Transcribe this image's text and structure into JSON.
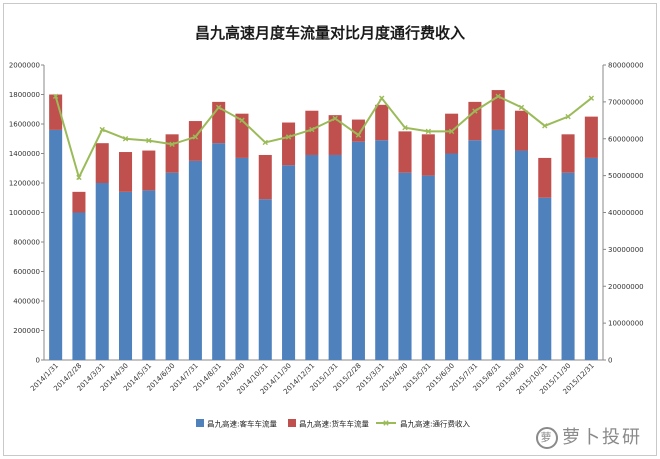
{
  "chart_data": {
    "type": "bar",
    "title": "昌九高速月度车流量对比月度通行费收入",
    "categories": [
      "2014/1/31",
      "2014/2/28",
      "2014/3/31",
      "2014/4/30",
      "2014/5/31",
      "2014/6/30",
      "2014/7/31",
      "2014/8/31",
      "2014/9/30",
      "2014/10/31",
      "2014/11/30",
      "2014/12/31",
      "2015/1/31",
      "2015/2/28",
      "2015/3/31",
      "2015/4/30",
      "2015/5/31",
      "2015/6/30",
      "2015/7/31",
      "2015/8/31",
      "2015/9/30",
      "2015/10/31",
      "2015/11/30",
      "2015/12/31"
    ],
    "stacked": true,
    "series": [
      {
        "name": "昌九高速:客车车流量",
        "axis": "left",
        "color": "#4f81bd",
        "values": [
          1560000,
          1000000,
          1200000,
          1140000,
          1150000,
          1270000,
          1350000,
          1470000,
          1370000,
          1090000,
          1320000,
          1390000,
          1390000,
          1480000,
          1490000,
          1270000,
          1250000,
          1400000,
          1490000,
          1560000,
          1420000,
          1100000,
          1270000,
          1370000
        ]
      },
      {
        "name": "昌九高速:货车车流量",
        "axis": "left",
        "color": "#c0504d",
        "values": [
          240000,
          140000,
          270000,
          270000,
          270000,
          260000,
          270000,
          280000,
          300000,
          300000,
          290000,
          300000,
          270000,
          150000,
          240000,
          280000,
          280000,
          270000,
          260000,
          270000,
          270000,
          270000,
          260000,
          280000
        ]
      },
      {
        "name": "昌九高速:通行费收入",
        "axis": "right",
        "type": "line",
        "color": "#9bbb59",
        "values": [
          71500000,
          49500000,
          62500000,
          60000000,
          59500000,
          58500000,
          60500000,
          68500000,
          65000000,
          59000000,
          60500000,
          62500000,
          65500000,
          61000000,
          71000000,
          63000000,
          62000000,
          62000000,
          67500000,
          71500000,
          68500000,
          63500000,
          66000000,
          71000000
        ]
      }
    ],
    "ylim_left": [
      0,
      2000000
    ],
    "yticks_left": [
      "0",
      "200000",
      "400000",
      "600000",
      "800000",
      "1000000",
      "1200000",
      "1400000",
      "1600000",
      "1800000",
      "2000000"
    ],
    "ylim_right": [
      0,
      80000000
    ],
    "yticks_right": [
      "0",
      "10000000",
      "20000000",
      "30000000",
      "40000000",
      "50000000",
      "60000000",
      "70000000",
      "80000000"
    ],
    "grid": false,
    "legend_position": "bottom"
  },
  "watermark": {
    "logo": "萝",
    "text": "萝卜投研"
  }
}
